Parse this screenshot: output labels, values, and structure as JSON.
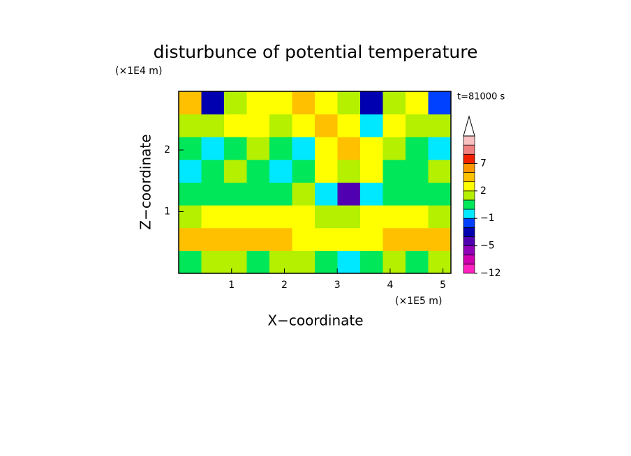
{
  "chart_data": {
    "type": "contour",
    "title": "disturbunce of potential temperature",
    "x_label": "X−coordinate",
    "y_label": "Z−coordinate",
    "x_unit": "(×1E5 m)",
    "y_unit": "(×1E4 m)",
    "annotation": "t=81000 s",
    "xlim": [
      0,
      5.15
    ],
    "ylim": [
      0,
      2.95
    ],
    "xticks": [
      1,
      2,
      3,
      4,
      5
    ],
    "yticks": [
      1,
      2
    ],
    "field": [
      [
        0,
        1,
        1,
        0,
        1,
        1,
        0,
        -1,
        0,
        1,
        0,
        1
      ],
      [
        3,
        3,
        3,
        3,
        3,
        2,
        2,
        2,
        2,
        3,
        3,
        3
      ],
      [
        1,
        2,
        2,
        2,
        2,
        2,
        1,
        1,
        2,
        2,
        2,
        1
      ],
      [
        0,
        0,
        0,
        0,
        0,
        1,
        -1,
        -5,
        -1,
        0,
        0,
        0
      ],
      [
        -1,
        0,
        1,
        0,
        -1,
        0,
        2,
        1,
        2,
        0,
        0,
        1
      ],
      [
        0,
        -1,
        0,
        1,
        0,
        -1,
        2,
        3,
        2,
        1,
        0,
        -1
      ],
      [
        1,
        1,
        2,
        2,
        1,
        2,
        3,
        2,
        -1,
        2,
        1,
        1
      ],
      [
        3,
        -4,
        1,
        2,
        2,
        3,
        2,
        1,
        -4,
        1,
        2,
        -3
      ]
    ],
    "colorbar": {
      "levels": [
        -12,
        -9,
        -7,
        -5,
        -4,
        -3,
        -1,
        0,
        1,
        2,
        3,
        5,
        7,
        9,
        11,
        13
      ],
      "colors": [
        "#ff20c0",
        "#d000b0",
        "#9000b8",
        "#5000b0",
        "#0000b0",
        "#0040ff",
        "#00e8ff",
        "#00e85a",
        "#b4f000",
        "#ffff00",
        "#ffc000",
        "#ff9600",
        "#f02000",
        "#f08080",
        "#f8c0c0"
      ],
      "ticks": [
        {
          "value": -12,
          "label": "−12"
        },
        {
          "value": -5,
          "label": "−5"
        },
        {
          "value": -1,
          "label": "−1"
        },
        2,
        7
      ]
    }
  }
}
